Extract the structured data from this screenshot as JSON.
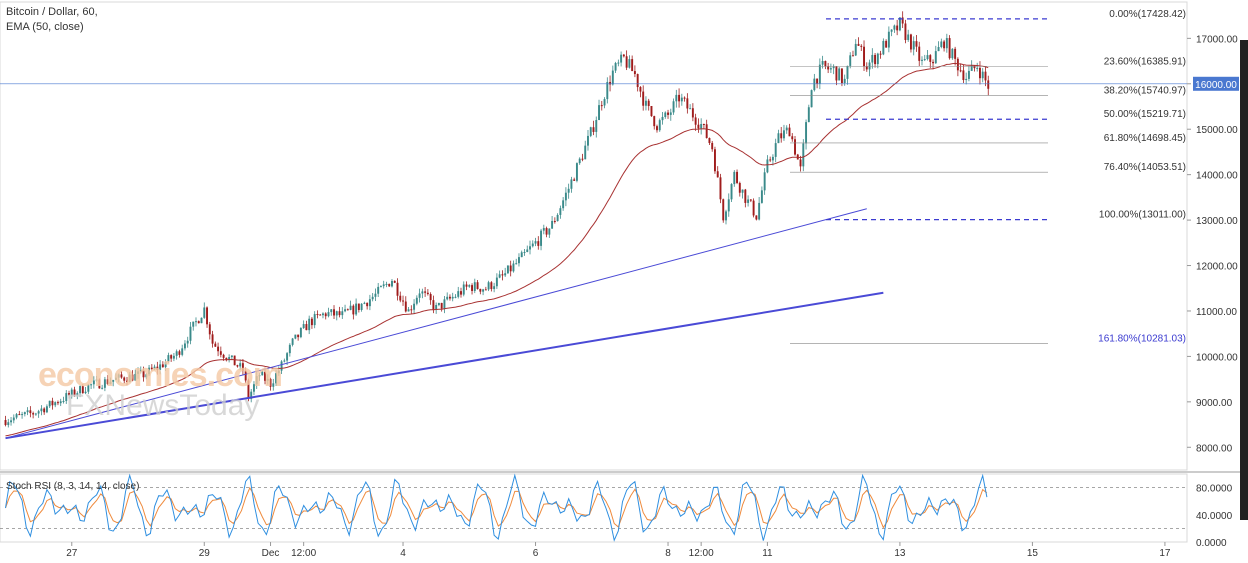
{
  "header": {
    "title": "Bitcoin / Dollar, 60,",
    "indicator": "EMA (50, close)"
  },
  "watermark": {
    "line1": "economies.com",
    "line2": "FXNewsToday"
  },
  "colors": {
    "bull": "#3a8a8a",
    "bear": "#a01c1c",
    "ema": "#a83232",
    "trend": "#4a4ad6",
    "fib": "#3b3bd0",
    "rsi_k": "#2f8fe0",
    "rsi_d": "#ef8a3c",
    "price_tag": "#4a78d0"
  },
  "chart_data": {
    "type": "candlestick",
    "title": "Bitcoin / Dollar, 60,",
    "price_ylim": [
      7500,
      17800
    ],
    "y_ticks": [
      8000,
      9000,
      10000,
      11000,
      12000,
      13000,
      14000,
      15000,
      16000,
      17000
    ],
    "y_tick_labels": [
      "8000.00",
      "9000.00",
      "10000.00",
      "11000.00",
      "12000.00",
      "13000.00",
      "14000.00",
      "15000.00",
      "16000.00",
      "17000.00"
    ],
    "x_ticks": [
      {
        "t": 24,
        "label": "27"
      },
      {
        "t": 72,
        "label": "29"
      },
      {
        "t": 96,
        "label": "Dec"
      },
      {
        "t": 108,
        "label": "12:00"
      },
      {
        "t": 144,
        "label": "4"
      },
      {
        "t": 192,
        "label": "6"
      },
      {
        "t": 240,
        "label": "8"
      },
      {
        "t": 252,
        "label": "12:00"
      },
      {
        "t": 276,
        "label": "11"
      },
      {
        "t": 324,
        "label": "13"
      },
      {
        "t": 372,
        "label": "15"
      },
      {
        "t": 420,
        "label": "17"
      }
    ],
    "current_price": {
      "value": 16000,
      "label": "16000.00"
    },
    "ema": {
      "name": "EMA (50, close)",
      "period": 50
    },
    "price_anchors": [
      [
        0,
        8600
      ],
      [
        10,
        8750
      ],
      [
        20,
        9050
      ],
      [
        30,
        9350
      ],
      [
        40,
        9500
      ],
      [
        50,
        9600
      ],
      [
        55,
        9750
      ],
      [
        62,
        10050
      ],
      [
        66,
        10450
      ],
      [
        69,
        10750
      ],
      [
        72,
        11050
      ],
      [
        75,
        10300
      ],
      [
        80,
        10000
      ],
      [
        86,
        9700
      ],
      [
        88,
        9100
      ],
      [
        92,
        9600
      ],
      [
        96,
        9400
      ],
      [
        100,
        9800
      ],
      [
        104,
        10300
      ],
      [
        110,
        10750
      ],
      [
        116,
        10950
      ],
      [
        122,
        10900
      ],
      [
        128,
        11100
      ],
      [
        134,
        11350
      ],
      [
        140,
        11700
      ],
      [
        146,
        11000
      ],
      [
        150,
        11450
      ],
      [
        156,
        11050
      ],
      [
        162,
        11300
      ],
      [
        168,
        11550
      ],
      [
        174,
        11500
      ],
      [
        180,
        11750
      ],
      [
        186,
        12100
      ],
      [
        192,
        12500
      ],
      [
        198,
        12900
      ],
      [
        204,
        13700
      ],
      [
        208,
        14300
      ],
      [
        212,
        14900
      ],
      [
        216,
        15650
      ],
      [
        220,
        16250
      ],
      [
        224,
        16550
      ],
      [
        228,
        16200
      ],
      [
        232,
        15500
      ],
      [
        236,
        15100
      ],
      [
        240,
        15300
      ],
      [
        244,
        15700
      ],
      [
        248,
        15400
      ],
      [
        252,
        15100
      ],
      [
        256,
        14600
      ],
      [
        260,
        13100
      ],
      [
        264,
        14000
      ],
      [
        268,
        13500
      ],
      [
        272,
        13100
      ],
      [
        276,
        14200
      ],
      [
        280,
        14800
      ],
      [
        284,
        15000
      ],
      [
        288,
        14100
      ],
      [
        292,
        16000
      ],
      [
        296,
        16350
      ],
      [
        300,
        16300
      ],
      [
        304,
        16050
      ],
      [
        308,
        16950
      ],
      [
        312,
        16400
      ],
      [
        316,
        16650
      ],
      [
        320,
        17000
      ],
      [
        324,
        17300
      ],
      [
        328,
        16900
      ],
      [
        332,
        16450
      ],
      [
        336,
        16550
      ],
      [
        340,
        16950
      ],
      [
        344,
        16500
      ],
      [
        348,
        16150
      ],
      [
        352,
        16400
      ],
      [
        356,
        15950
      ]
    ],
    "fibonacci": [
      {
        "label": "0.00%(17428.42)",
        "value": 17428.42
      },
      {
        "label": "23.60%(16385.91)",
        "value": 16385.91
      },
      {
        "label": "38.20%(15740.97)",
        "value": 15740.97
      },
      {
        "label": "50.00%(15219.71)",
        "value": 15219.71
      },
      {
        "label": "61.80%(14698.45)",
        "value": 14698.45
      },
      {
        "label": "76.40%(14053.51)",
        "value": 14053.51
      },
      {
        "label": "100.00%(13011.00)",
        "value": 13011.0
      },
      {
        "label": "161.80%(10281.03)",
        "value": 10281.03
      }
    ],
    "trendlines": [
      {
        "from": [
          0,
          8200
        ],
        "to": [
          312,
          13250
        ],
        "width": 1
      },
      {
        "from": [
          0,
          8200
        ],
        "to": [
          318,
          11400
        ],
        "width": 2
      }
    ],
    "rsi": {
      "label": "Stoch RSI (8, 3, 14, 14, close)",
      "ylim": [
        0,
        100
      ],
      "ticks": [
        0,
        40,
        80
      ],
      "tick_labels": [
        "0.0000",
        "40.0000",
        "80.0000"
      ],
      "bands": [
        20,
        80
      ]
    }
  }
}
